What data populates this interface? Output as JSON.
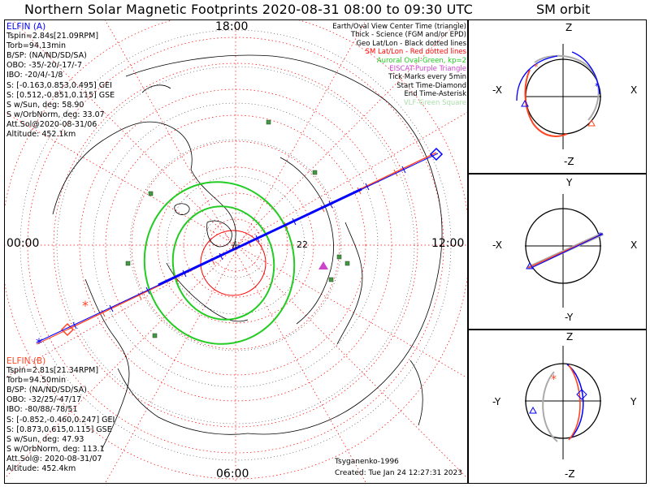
{
  "title": "Northern Solar Magnetic Footprints 2020-08-31 08:00 to 09:30 UTC",
  "orbit_title": "SM orbit",
  "hour_labels": {
    "top": "18:00",
    "left": "00:00",
    "right": "12:00",
    "bottom": "06:00"
  },
  "ring_label": "22",
  "elfin_a": {
    "title": "ELFIN (A)",
    "color": "#0000ff",
    "lines": [
      "Tspin=2.84s[21.09RPM]",
      "Torb=94.13min",
      "B/SP: (NA/ND/SD/SA)",
      "OBO: -35/-20/-17/-7",
      "IBO: -20/4/-1/8",
      "S: [-0.163,0.853,0.495] GEI",
      "S: [0.512,-0.851,0.115] GSE",
      "S w/Sun, deg: 58.90",
      "S w/OrbNorm, deg: 33.07",
      "Att.Sol@2020-08-31/06",
      "Altitude: 452.1km"
    ]
  },
  "elfin_b": {
    "title": "ELFIN (B)",
    "color": "#ff0000",
    "lines": [
      "Tspin=2.81s[21.34RPM]",
      "Torb=94.50min",
      "B/SP: (NA/ND/SD/SA)",
      "OBO: -32/25/-47/17",
      "IBO: -80/88/-78/51",
      "S: [-0.852,-0.460,0.247] GEI",
      "S: [0.873,0.615,0.115] GSE",
      "S w/Sun, deg: 47.93",
      "S w/OrbNorm, deg: 113.1",
      "Att.Sol@: 2020-08-31/07",
      "Altitude: 452.4km"
    ]
  },
  "legend": [
    {
      "text": "Earth/Oval View Center Time (triangle)",
      "color": "#000000"
    },
    {
      "text": "Thick - Science (FGM and/or EPD)",
      "color": "#000000"
    },
    {
      "text": "Geo Lat/Lon - Black dotted lines",
      "color": "#000000"
    },
    {
      "text": "SM Lat/Lon - Red dotted lines",
      "color": "#ff0000"
    },
    {
      "text": "Auroral Oval-Green, kp=2",
      "color": "#22cc22"
    },
    {
      "text": "EISCAT-Purple Triangle",
      "color": "#cc44cc"
    },
    {
      "text": "Tick Marks every 5min",
      "color": "#000000"
    },
    {
      "text": "Start Time-Diamond",
      "color": "#000000"
    },
    {
      "text": "End Time-Asterisk",
      "color": "#000000"
    },
    {
      "text": "VLF-Green Square",
      "color": "#aaddaa"
    }
  ],
  "credits": {
    "author": "Tsyganenko-1996",
    "created": "Created: Tue Jan 24 12:27:31 2023"
  },
  "orbit_panels": [
    {
      "top": "Z",
      "bottom": "-Z",
      "left": "-X",
      "right": "X"
    },
    {
      "top": "Y",
      "bottom": "-Y",
      "left": "-X",
      "right": "X"
    },
    {
      "top": "Z",
      "bottom": "-Z",
      "left": "-Y",
      "right": "Y"
    }
  ],
  "colors": {
    "elfin_a": "#0000ff",
    "elfin_b": "#ff4422",
    "sm_grid": "#ff0000",
    "auroral_oval": "#22cc22",
    "vlf_station": "#449944",
    "eiscat": "#cc44cc",
    "orbit_gray": "#aaaaaa"
  }
}
